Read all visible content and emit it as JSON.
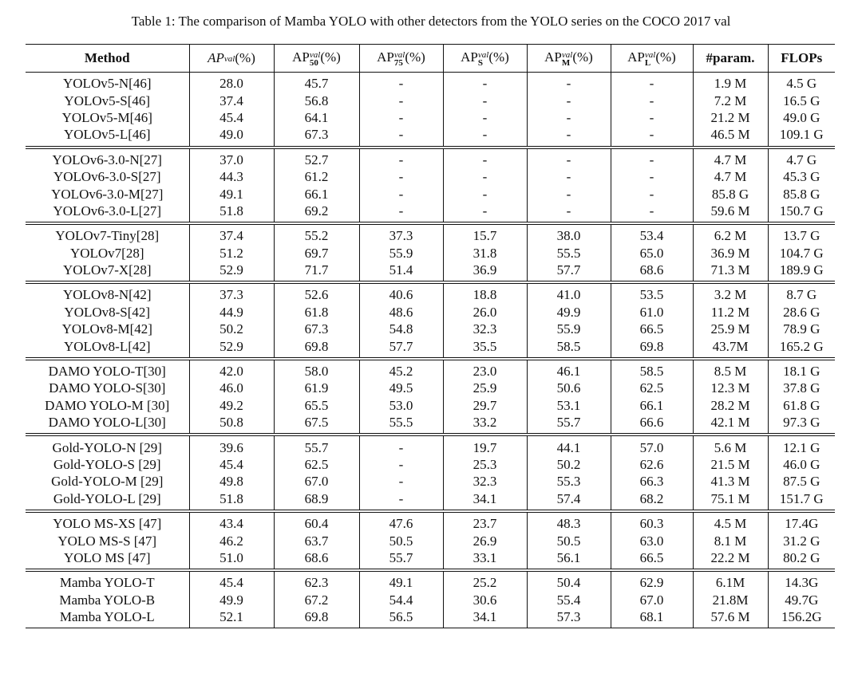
{
  "title": "Table 1: The comparison of Mamba YOLO with other detectors from the YOLO series on the COCO 2017 val",
  "table": {
    "headers": [
      "Method",
      {
        "base": "AP",
        "sup": "val",
        "unit": "(%)"
      },
      {
        "base": "AP",
        "sup": "val",
        "sub": "50",
        "unit": "(%)"
      },
      {
        "base": "AP",
        "sup": "val",
        "sub": "75",
        "unit": "(%)"
      },
      {
        "base": "AP",
        "sup": "val",
        "sub": "S",
        "unit": "(%)"
      },
      {
        "base": "AP",
        "sup": "val",
        "sub": "M",
        "unit": "(%)"
      },
      {
        "base": "AP",
        "sup": "val",
        "sub": "L",
        "unit": "(%)"
      },
      "#param.",
      "FLOPs"
    ],
    "groups": [
      {
        "rows": [
          [
            "YOLOv5-N[46]",
            "28.0",
            "45.7",
            "-",
            "-",
            "-",
            "-",
            "1.9 M",
            "4.5 G"
          ],
          [
            "YOLOv5-S[46]",
            "37.4",
            "56.8",
            "-",
            "-",
            "-",
            "-",
            "7.2 M",
            "16.5 G"
          ],
          [
            "YOLOv5-M[46]",
            "45.4",
            "64.1",
            "-",
            "-",
            "-",
            "-",
            "21.2 M",
            "49.0 G"
          ],
          [
            "YOLOv5-L[46]",
            "49.0",
            "67.3",
            "-",
            "-",
            "-",
            "-",
            "46.5 M",
            "109.1 G"
          ]
        ]
      },
      {
        "rows": [
          [
            "YOLOv6-3.0-N[27]",
            "37.0",
            "52.7",
            "-",
            "-",
            "-",
            "-",
            "4.7 M",
            "4.7 G"
          ],
          [
            "YOLOv6-3.0-S[27]",
            "44.3",
            "61.2",
            "-",
            "-",
            "-",
            "-",
            "4.7 M",
            "45.3 G"
          ],
          [
            "YOLOv6-3.0-M[27]",
            "49.1",
            "66.1",
            "-",
            "-",
            "-",
            "-",
            "85.8 G",
            "85.8 G"
          ],
          [
            "YOLOv6-3.0-L[27]",
            "51.8",
            "69.2",
            "-",
            "-",
            "-",
            "-",
            "59.6 M",
            "150.7 G"
          ]
        ]
      },
      {
        "rows": [
          [
            "YOLOv7-Tiny[28]",
            "37.4",
            "55.2",
            "37.3",
            "15.7",
            "38.0",
            "53.4",
            "6.2 M",
            "13.7 G"
          ],
          [
            "YOLOv7[28]",
            "51.2",
            "69.7",
            "55.9",
            "31.8",
            "55.5",
            "65.0",
            "36.9 M",
            "104.7 G"
          ],
          [
            "YOLOv7-X[28]",
            "52.9",
            "71.7",
            "51.4",
            "36.9",
            "57.7",
            "68.6",
            "71.3 M",
            "189.9 G"
          ]
        ]
      },
      {
        "rows": [
          [
            "YOLOv8-N[42]",
            "37.3",
            "52.6",
            "40.6",
            "18.8",
            "41.0",
            "53.5",
            "3.2 M",
            "8.7 G"
          ],
          [
            "YOLOv8-S[42]",
            "44.9",
            "61.8",
            "48.6",
            "26.0",
            "49.9",
            "61.0",
            "11.2 M",
            "28.6 G"
          ],
          [
            "YOLOv8-M[42]",
            "50.2",
            "67.3",
            "54.8",
            "32.3",
            "55.9",
            "66.5",
            "25.9 M",
            "78.9 G"
          ],
          [
            "YOLOv8-L[42]",
            "52.9",
            "69.8",
            "57.7",
            "35.5",
            "58.5",
            "69.8",
            "43.7M",
            "165.2 G"
          ]
        ]
      },
      {
        "rows": [
          [
            "DAMO YOLO-T[30]",
            "42.0",
            "58.0",
            "45.2",
            "23.0",
            "46.1",
            "58.5",
            "8.5 M",
            "18.1 G"
          ],
          [
            "DAMO YOLO-S[30]",
            "46.0",
            "61.9",
            "49.5",
            "25.9",
            "50.6",
            "62.5",
            "12.3 M",
            "37.8 G"
          ],
          [
            "DAMO YOLO-M [30]",
            "49.2",
            "65.5",
            "53.0",
            "29.7",
            "53.1",
            "66.1",
            "28.2 M",
            "61.8 G"
          ],
          [
            "DAMO YOLO-L[30]",
            "50.8",
            "67.5",
            "55.5",
            "33.2",
            "55.7",
            "66.6",
            "42.1 M",
            "97.3 G"
          ]
        ]
      },
      {
        "rows": [
          [
            "Gold-YOLO-N [29]",
            "39.6",
            "55.7",
            "-",
            "19.7",
            "44.1",
            "57.0",
            "5.6 M",
            "12.1 G"
          ],
          [
            "Gold-YOLO-S [29]",
            "45.4",
            "62.5",
            "-",
            "25.3",
            "50.2",
            "62.6",
            "21.5 M",
            "46.0 G"
          ],
          [
            "Gold-YOLO-M [29]",
            "49.8",
            "67.0",
            "-",
            "32.3",
            "55.3",
            "66.3",
            "41.3 M",
            "87.5 G"
          ],
          [
            "Gold-YOLO-L [29]",
            "51.8",
            "68.9",
            "-",
            "34.1",
            "57.4",
            "68.2",
            "75.1 M",
            "151.7 G"
          ]
        ]
      },
      {
        "rows": [
          [
            "YOLO MS-XS [47]",
            "43.4",
            "60.4",
            "47.6",
            "23.7",
            "48.3",
            "60.3",
            "4.5 M",
            "17.4G"
          ],
          [
            "YOLO MS-S [47]",
            "46.2",
            "63.7",
            "50.5",
            "26.9",
            "50.5",
            "63.0",
            "8.1 M",
            "31.2 G"
          ],
          [
            "YOLO MS [47]",
            "51.0",
            "68.6",
            "55.7",
            "33.1",
            "56.1",
            "66.5",
            "22.2 M",
            "80.2 G"
          ]
        ]
      },
      {
        "rows": [
          [
            "Mamba YOLO-T",
            "45.4",
            "62.3",
            "49.1",
            "25.2",
            "50.4",
            "62.9",
            "6.1M",
            "14.3G"
          ],
          [
            "Mamba YOLO-B",
            "49.9",
            "67.2",
            "54.4",
            "30.6",
            "55.4",
            "67.0",
            "21.8M",
            "49.7G"
          ],
          [
            "Mamba YOLO-L",
            "52.1",
            "69.8",
            "56.5",
            "34.1",
            "57.3",
            "68.1",
            "57.6 M",
            "156.2G"
          ]
        ]
      }
    ]
  }
}
